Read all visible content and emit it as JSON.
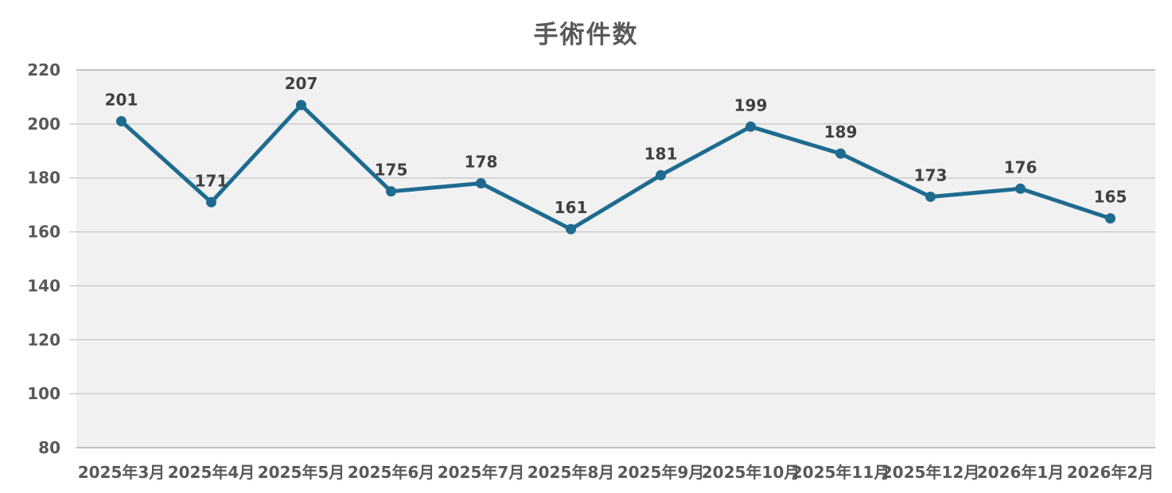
{
  "chart_data": {
    "type": "line",
    "title": "手術件数",
    "categories": [
      "2025年3月",
      "2025年4月",
      "2025年5月",
      "2025年6月",
      "2025年7月",
      "2025年8月",
      "2025年9月",
      "2025年10月",
      "2025年11月",
      "2025年12月",
      "2026年1月",
      "2026年2月"
    ],
    "values": [
      201,
      171,
      207,
      175,
      178,
      161,
      181,
      199,
      189,
      173,
      176,
      165
    ],
    "xlabel": "",
    "ylabel": "",
    "ylim": [
      80,
      220
    ],
    "ytick_interval": 20,
    "yticks": [
      220,
      200,
      180,
      160,
      140,
      120,
      100,
      80
    ],
    "grid": true,
    "legend_position": "none",
    "data_labels_visible": true,
    "colors": {
      "line": "#1f6b90",
      "marker": "#1f6b90",
      "plot_background": "#f1f1f1",
      "page_background": "#ffffff",
      "gridline": "#cccccc",
      "plot_border": "#c2c2c2",
      "title_text": "#595959",
      "axis_text": "#595959",
      "data_label_text": "#404040"
    }
  }
}
